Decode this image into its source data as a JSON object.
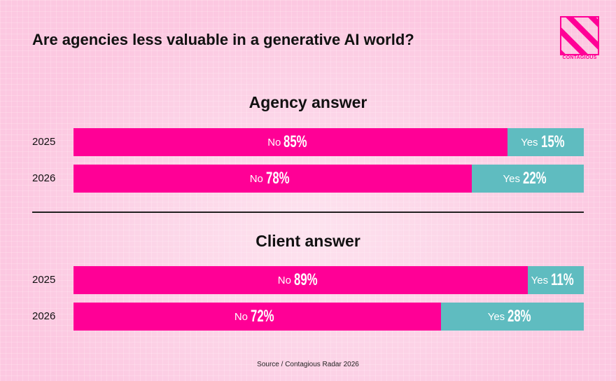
{
  "title": "Are agencies less valuable in a generative AI world?",
  "logo": {
    "text": "CONTAGIOUS"
  },
  "colors": {
    "no": "#ff0096",
    "yes": "#5fbcc0",
    "background": "#fcc8e1"
  },
  "source": "Source / Contagious Radar 2026",
  "chart_data": {
    "type": "bar",
    "orientation": "horizontal-stacked-100",
    "legend": "inline labels",
    "groups": [
      {
        "title": "Agency answer",
        "rows": [
          {
            "label": "2025",
            "no_label": "No",
            "no": 85,
            "no_text": "85%",
            "yes_label": "Yes",
            "yes": 15,
            "yes_text": "15%"
          },
          {
            "label": "2026",
            "no_label": "No",
            "no": 78,
            "no_text": "78%",
            "yes_label": "Yes",
            "yes": 22,
            "yes_text": "22%"
          }
        ]
      },
      {
        "title": "Client answer",
        "rows": [
          {
            "label": "2025",
            "no_label": "No",
            "no": 89,
            "no_text": "89%",
            "yes_label": "Yes",
            "yes": 11,
            "yes_text": "11%"
          },
          {
            "label": "2026",
            "no_label": "No",
            "no": 72,
            "no_text": "72%",
            "yes_label": "Yes",
            "yes": 28,
            "yes_text": "28%"
          }
        ]
      }
    ]
  }
}
